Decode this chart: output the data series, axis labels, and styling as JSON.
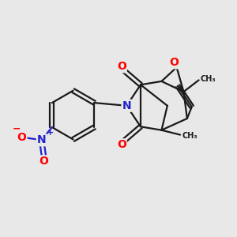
{
  "bg_color": "#e8e8e8",
  "bond_color": "#1a1a1a",
  "bond_width": 1.6,
  "atom_colors": {
    "O": "#ff0000",
    "N": "#2222cc",
    "C": "#1a1a1a"
  },
  "font_size_atom": 10,
  "font_size_small": 8
}
